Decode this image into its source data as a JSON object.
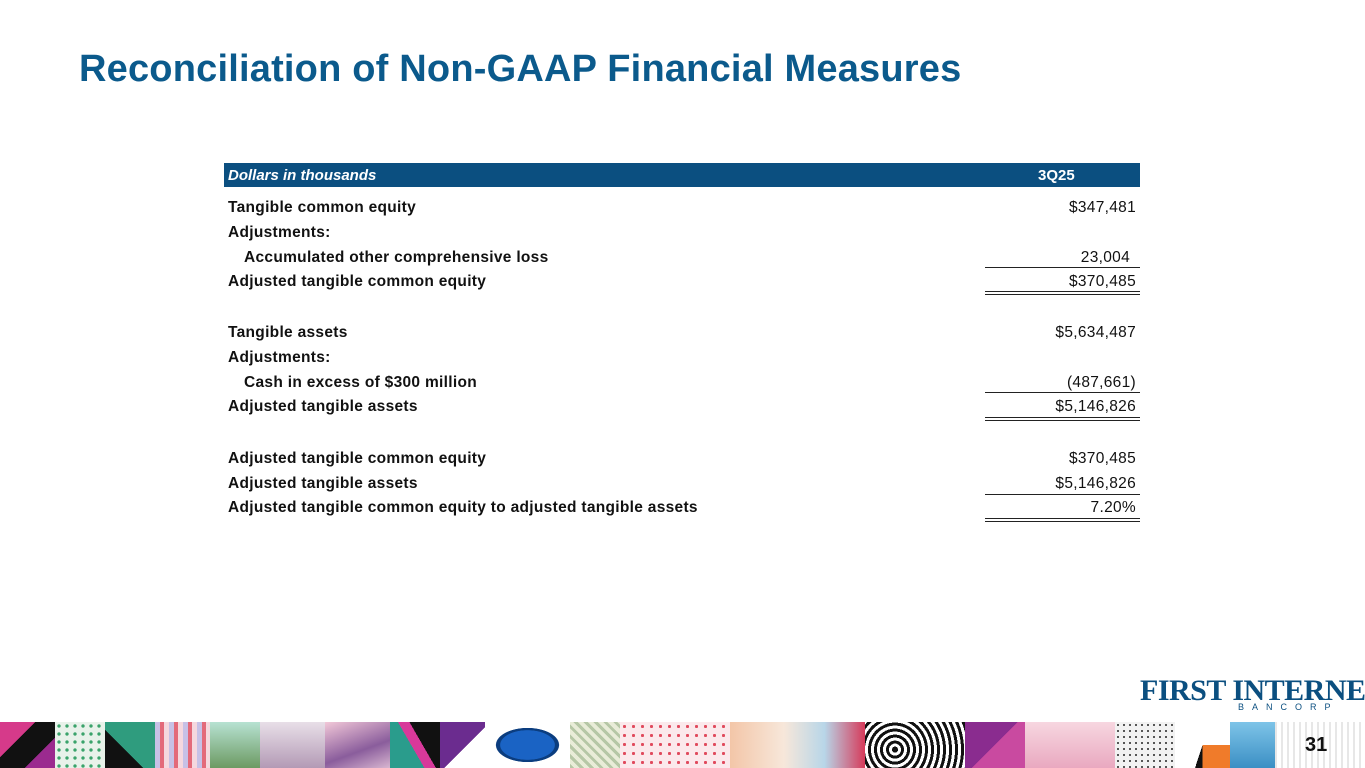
{
  "title": "Reconciliation of Non-GAAP Financial Measures",
  "table": {
    "header_label": "Dollars in thousands",
    "header_period": "3Q25",
    "rows": [
      {
        "label": "Tangible common equity",
        "value": "$347,481"
      },
      {
        "label": "Adjustments:",
        "value": ""
      },
      {
        "label": "Accumulated other comprehensive loss",
        "value": "23,004"
      },
      {
        "label": "Adjusted tangible common equity",
        "value": "$370,485"
      },
      {
        "label": "Tangible assets",
        "value": "$5,634,487"
      },
      {
        "label": "Adjustments:",
        "value": ""
      },
      {
        "label": "Cash in excess of $300 million",
        "value": "(487,661)"
      },
      {
        "label": "Adjusted tangible assets",
        "value": "$5,146,826"
      },
      {
        "label": "Adjusted tangible common equity",
        "value": "$370,485"
      },
      {
        "label": "Adjusted tangible assets",
        "value": "$5,146,826"
      },
      {
        "label": "Adjusted tangible common equity to adjusted tangible assets",
        "value": "7.20%"
      }
    ]
  },
  "logo": {
    "main": "FIRST INTERNET",
    "sub": "BANCORP"
  },
  "page_number": "31",
  "colors": {
    "title": "#0b5a8c",
    "header_bg": "#0b4f80",
    "logo_green": "#5a8f2e"
  }
}
